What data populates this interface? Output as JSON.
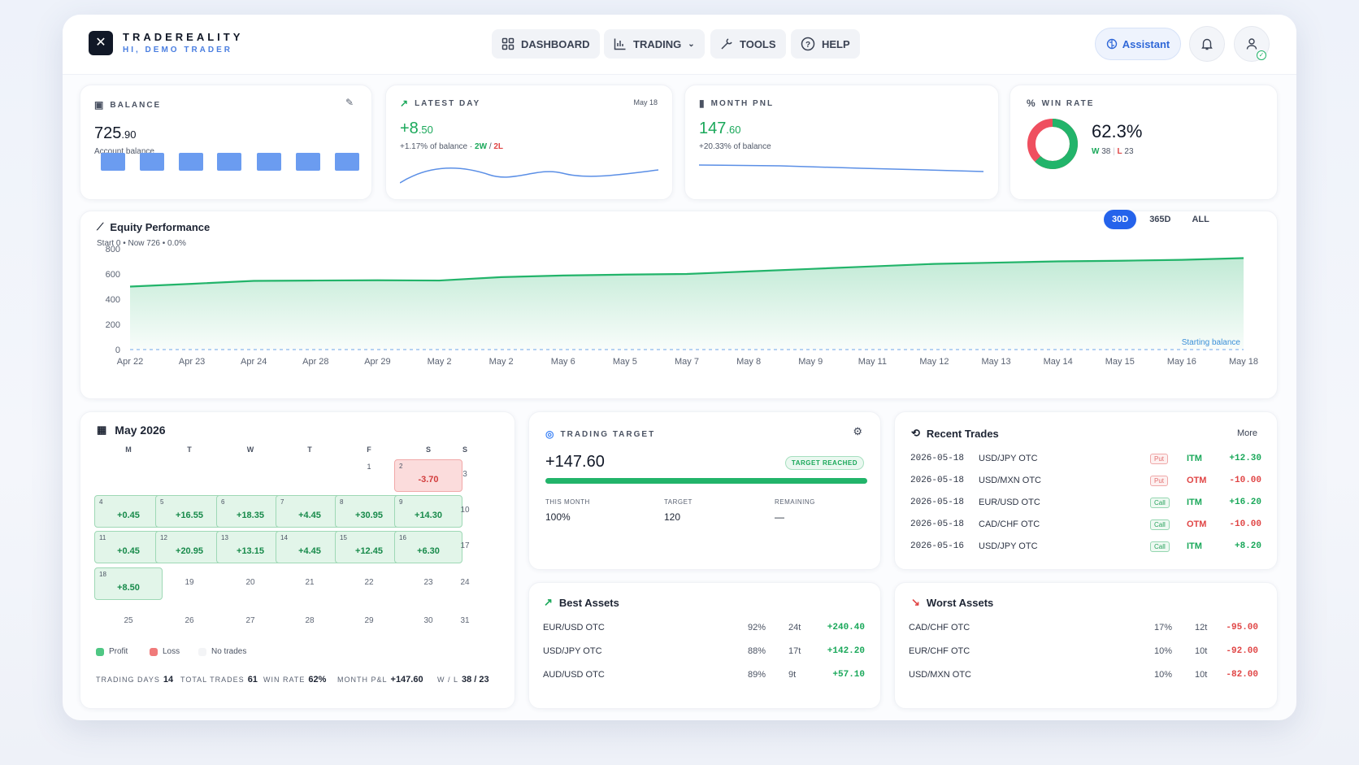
{
  "header": {
    "logo_glyph": "✕",
    "brand": "TRADEREALITY",
    "greeting": "HI, DEMO TRADER",
    "nav": [
      {
        "label": "DASHBOARD",
        "icon": "grid-icon"
      },
      {
        "label": "TRADING",
        "icon": "chart-icon"
      },
      {
        "label": "TOOLS",
        "icon": "wrench-icon"
      },
      {
        "label": "HELP",
        "icon": "help-icon"
      }
    ],
    "assistant": "Assistant"
  },
  "balance": {
    "title": "BALANCE",
    "value_main": "725",
    "value_dec": ".90",
    "caption": "Account balance"
  },
  "latest_day": {
    "title": "LATEST DAY",
    "date": "May 18",
    "value_main": "+8",
    "value_dec": ".50",
    "pct": "+1.17% of balance",
    "sep": "·",
    "wins": "2W",
    "slash": "/",
    "losses": "2L"
  },
  "month_pnl": {
    "title": "MONTH PNL",
    "value_main": "147",
    "value_dec": ".60",
    "pct": "+20.33% of balance"
  },
  "win_rate": {
    "title": "WIN RATE",
    "value": "62.3%",
    "w_label": "W",
    "w": "38",
    "bar": "|",
    "l_label": "L",
    "l": "23",
    "fraction": 0.623
  },
  "equity": {
    "title": "Equity Performance",
    "subtitle": "Start 0 • Now 726 • 0.0%",
    "tabs": [
      "30D",
      "365D",
      "ALL"
    ],
    "active_tab": "30D",
    "baseline_label": "Starting balance"
  },
  "chart_data": {
    "type": "area",
    "title": "Equity Performance",
    "x": [
      "Apr 22",
      "Apr 23",
      "Apr 24",
      "Apr 28",
      "Apr 29",
      "May 2",
      "May 2",
      "May 6",
      "May 5",
      "May 7",
      "May 8",
      "May 9",
      "May 11",
      "May 12",
      "May 13",
      "May 14",
      "May 15",
      "May 16",
      "May 18"
    ],
    "yticks": [
      0,
      200,
      400,
      600,
      800
    ],
    "ylim": [
      0,
      800
    ],
    "series": [
      {
        "values": [
          500,
          522,
          545,
          548,
          550,
          548,
          575,
          588,
          595,
          600,
          620,
          640,
          660,
          680,
          690,
          700,
          705,
          712,
          726
        ]
      }
    ],
    "baseline": 0,
    "color": "#22b46a"
  },
  "calendar": {
    "title": "May 2026",
    "weekdays": [
      "M",
      "T",
      "W",
      "T",
      "F",
      "S",
      "S"
    ],
    "rows": [
      [
        {
          "d": ""
        },
        {
          "d": ""
        },
        {
          "d": ""
        },
        {
          "d": ""
        },
        {
          "d": "1",
          "t": "plain"
        },
        {
          "d": "2",
          "v": "-3.70",
          "t": "loss"
        },
        {
          "d": "3",
          "t": "empty"
        }
      ],
      [
        {
          "d": "4",
          "v": "+0.45",
          "t": "profit"
        },
        {
          "d": "5",
          "v": "+16.55",
          "t": "profit"
        },
        {
          "d": "6",
          "v": "+18.35",
          "t": "profit"
        },
        {
          "d": "7",
          "v": "+4.45",
          "t": "profit"
        },
        {
          "d": "8",
          "v": "+30.95",
          "t": "profit"
        },
        {
          "d": "9",
          "v": "+14.30",
          "t": "profit"
        },
        {
          "d": "10",
          "t": "empty"
        }
      ],
      [
        {
          "d": "11",
          "v": "+0.45",
          "t": "profit"
        },
        {
          "d": "12",
          "v": "+20.95",
          "t": "profit"
        },
        {
          "d": "13",
          "v": "+13.15",
          "t": "profit"
        },
        {
          "d": "14",
          "v": "+4.45",
          "t": "profit"
        },
        {
          "d": "15",
          "v": "+12.45",
          "t": "profit"
        },
        {
          "d": "16",
          "v": "+6.30",
          "t": "profit"
        },
        {
          "d": "17",
          "t": "empty"
        }
      ],
      [
        {
          "d": "18",
          "v": "+8.50",
          "t": "profit"
        },
        {
          "d": "19",
          "t": "empty"
        },
        {
          "d": "20",
          "t": "empty"
        },
        {
          "d": "21",
          "t": "empty"
        },
        {
          "d": "22",
          "t": "empty"
        },
        {
          "d": "23",
          "t": "empty"
        },
        {
          "d": "24",
          "t": "empty"
        }
      ],
      [
        {
          "d": "25",
          "t": "empty"
        },
        {
          "d": "26",
          "t": "empty"
        },
        {
          "d": "27",
          "t": "empty"
        },
        {
          "d": "28",
          "t": "empty"
        },
        {
          "d": "29",
          "t": "empty"
        },
        {
          "d": "30",
          "t": "empty"
        },
        {
          "d": "31",
          "t": "empty"
        }
      ]
    ],
    "legend": [
      "Profit",
      "Loss",
      "No trades"
    ],
    "stats": {
      "days_label": "TRADING DAYS",
      "days": "14",
      "trades_label": "TOTAL TRADES",
      "trades": "61",
      "winrate_label": "WIN RATE",
      "winrate": "62%",
      "pnl_label": "MONTH P&L",
      "pnl": "+147.60",
      "wl_label": "W / L",
      "wl": "38 / 23"
    }
  },
  "target": {
    "title": "TRADING TARGET",
    "value": "+147.60",
    "badge": "TARGET REACHED",
    "progress": 1.0,
    "this_month_label": "THIS MONTH",
    "this_month": "100%",
    "target_label": "TARGET",
    "target": "120",
    "remaining_label": "REMAINING",
    "remaining": "—"
  },
  "recent": {
    "title": "Recent Trades",
    "more": "More",
    "rows": [
      {
        "date": "2026-05-18",
        "asset": "USD/JPY OTC",
        "dir": "Put",
        "res": "ITM",
        "pnl": "+12.30"
      },
      {
        "date": "2026-05-18",
        "asset": "USD/MXN OTC",
        "dir": "Put",
        "res": "OTM",
        "pnl": "-10.00"
      },
      {
        "date": "2026-05-18",
        "asset": "EUR/USD OTC",
        "dir": "Call",
        "res": "ITM",
        "pnl": "+16.20"
      },
      {
        "date": "2026-05-18",
        "asset": "CAD/CHF OTC",
        "dir": "Call",
        "res": "OTM",
        "pnl": "-10.00"
      },
      {
        "date": "2026-05-16",
        "asset": "USD/JPY OTC",
        "dir": "Call",
        "res": "ITM",
        "pnl": "+8.20"
      }
    ]
  },
  "best": {
    "title": "Best Assets",
    "rows": [
      {
        "asset": "EUR/USD OTC",
        "pct": "92%",
        "trades": "24t",
        "pnl": "+240.40"
      },
      {
        "asset": "USD/JPY OTC",
        "pct": "88%",
        "trades": "17t",
        "pnl": "+142.20"
      },
      {
        "asset": "AUD/USD OTC",
        "pct": "89%",
        "trades": "9t",
        "pnl": "+57.10"
      }
    ]
  },
  "worst": {
    "title": "Worst Assets",
    "rows": [
      {
        "asset": "CAD/CHF OTC",
        "pct": "17%",
        "trades": "12t",
        "pnl": "-95.00"
      },
      {
        "asset": "EUR/CHF OTC",
        "pct": "10%",
        "trades": "10t",
        "pnl": "-92.00"
      },
      {
        "asset": "USD/MXN OTC",
        "pct": "10%",
        "trades": "10t",
        "pnl": "-82.00"
      }
    ]
  }
}
